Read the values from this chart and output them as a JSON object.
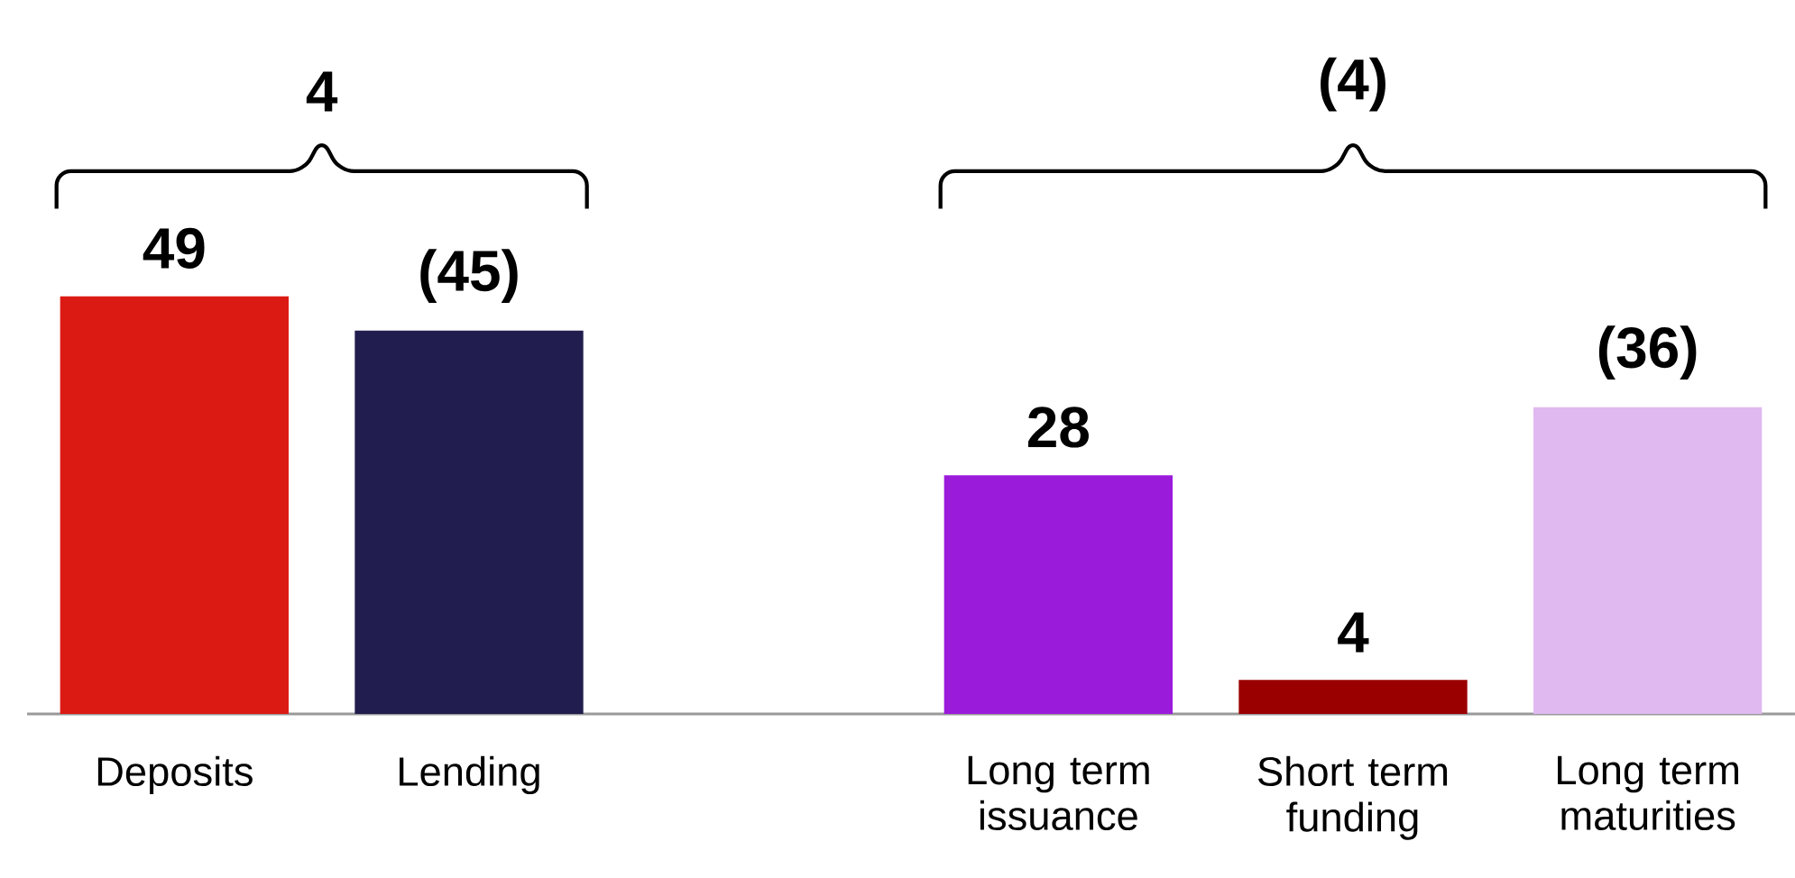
{
  "chart_data": {
    "type": "bar",
    "categories": [
      "Deposits",
      "Lending",
      null,
      "Long term issuance",
      "Short term funding",
      "Long term maturities"
    ],
    "values": [
      49,
      45,
      null,
      28,
      4,
      36
    ],
    "value_labels": [
      "49",
      "(45)",
      null,
      "28",
      "4",
      "(36)"
    ],
    "colors": [
      "#dc1a14",
      "#211d4e",
      null,
      "#9b1bdb",
      "#9b0000",
      "#e0b9f0"
    ],
    "annotations": [
      "4",
      "(4)"
    ],
    "tick_labels": "x"
  }
}
